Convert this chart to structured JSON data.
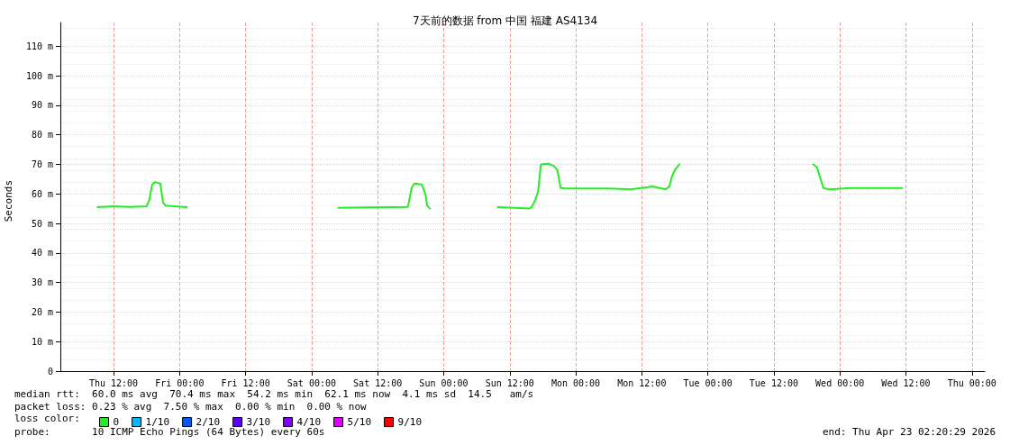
{
  "chart_data": {
    "type": "line",
    "title": "7天前的数据 from 中国 福建 AS4134",
    "ylabel": "Seconds",
    "legend_title": "loss color:",
    "legend": "bottom left",
    "grid": true,
    "marker": "none",
    "line_style": "solid",
    "xlim": [
      "2026-04-16T02:20",
      "2026-04-23T02:20"
    ],
    "xticks": [
      {
        "value": "2026-04-16T12:00",
        "label": "Thu 12:00"
      },
      {
        "value": "2026-04-17T00:00",
        "label": "Fri 00:00"
      },
      {
        "value": "2026-04-17T12:00",
        "label": "Fri 12:00"
      },
      {
        "value": "2026-04-18T00:00",
        "label": "Sat 00:00"
      },
      {
        "value": "2026-04-18T12:00",
        "label": "Sat 12:00"
      },
      {
        "value": "2026-04-19T00:00",
        "label": "Sun 00:00"
      },
      {
        "value": "2026-04-19T12:00",
        "label": "Sun 12:00"
      },
      {
        "value": "2026-04-20T00:00",
        "label": "Mon 00:00"
      },
      {
        "value": "2026-04-20T12:00",
        "label": "Mon 12:00"
      },
      {
        "value": "2026-04-21T00:00",
        "label": "Tue 00:00"
      },
      {
        "value": "2026-04-21T12:00",
        "label": "Tue 12:00"
      },
      {
        "value": "2026-04-22T00:00",
        "label": "Wed 00:00"
      },
      {
        "value": "2026-04-22T12:00",
        "label": "Wed 12:00"
      },
      {
        "value": "2026-04-23T00:00",
        "label": "Thu 00:00"
      }
    ],
    "ylim": [
      0,
      118
    ],
    "yticks": [
      0,
      {
        "value": 10,
        "label": "10 m"
      },
      {
        "value": 20,
        "label": "20 m"
      },
      {
        "value": 30,
        "label": "30 m"
      },
      {
        "value": 40,
        "label": "40 m"
      },
      {
        "value": 50,
        "label": "50 m"
      },
      {
        "value": 60,
        "label": "60 m"
      },
      {
        "value": 70,
        "label": "70 m"
      },
      {
        "value": 80,
        "label": "80 m"
      },
      {
        "value": 90,
        "label": "90 m"
      },
      {
        "value": 100,
        "label": "100 m"
      },
      {
        "value": 110,
        "label": "110 m"
      }
    ],
    "series": [
      {
        "name": "0",
        "color": "#22ee22",
        "x": [
          "2026-04-16T09:05",
          "2026-04-16T12:00",
          "2026-04-16T15:00",
          "2026-04-16T18:00",
          "2026-04-16T18:30",
          "2026-04-16T19:00",
          "2026-04-16T19:30",
          "2026-04-16T20:30",
          "2026-04-16T21:00",
          "2026-04-16T21:30",
          "2026-04-16T23:00",
          "2026-04-17T01:20",
          "2026-04-17T12:00",
          "2026-04-18T04:50",
          "2026-04-18T10:00",
          "2026-04-18T15:00",
          "2026-04-18T17:30",
          "2026-04-18T18:10",
          "2026-04-18T18:40",
          "2026-04-18T20:00",
          "2026-04-18T20:40",
          "2026-04-18T21:00",
          "2026-04-18T21:30",
          "2026-04-19T03:00",
          "2026-04-19T09:50",
          "2026-04-19T13:00",
          "2026-04-19T15:30",
          "2026-04-19T16:00",
          "2026-04-19T16:40",
          "2026-04-19T17:10",
          "2026-04-19T17:40",
          "2026-04-19T19:00",
          "2026-04-19T20:00",
          "2026-04-19T20:40",
          "2026-04-19T21:15",
          "2026-04-19T22:00",
          "2026-04-20T02:00",
          "2026-04-20T06:00",
          "2026-04-20T10:00",
          "2026-04-20T14:00",
          "2026-04-20T16:20",
          "2026-04-20T17:00",
          "2026-04-20T17:30",
          "2026-04-20T18:00",
          "2026-04-20T18:50",
          "2026-04-21T03:00",
          "2026-04-21T19:10",
          "2026-04-21T19:50",
          "2026-04-21T20:30",
          "2026-04-21T21:00",
          "2026-04-21T22:00",
          "2026-04-22T02:00",
          "2026-04-22T06:00",
          "2026-04-22T11:20"
        ],
        "values": [
          55.5,
          55.8,
          55.6,
          55.8,
          58,
          63,
          64,
          63.5,
          57,
          56,
          55.8,
          55.5,
          null,
          55.3,
          55.4,
          55.5,
          55.6,
          62,
          63.5,
          63.2,
          60,
          56,
          55,
          null,
          55.5,
          55.3,
          55,
          55.5,
          58,
          61,
          70,
          70.2,
          69.5,
          68,
          62,
          61.8,
          61.8,
          61.8,
          61.5,
          62.5,
          61.5,
          62.5,
          66,
          68,
          70,
          null,
          70,
          69,
          65,
          62,
          61.5,
          62,
          62,
          62
        ]
      },
      {
        "name": "1/10",
        "color": "#00b8ff"
      },
      {
        "name": "2/10",
        "color": "#0059ff"
      },
      {
        "name": "3/10",
        "color": "#5e00ff"
      },
      {
        "name": "4/10",
        "color": "#7e00ff"
      },
      {
        "name": "5/10",
        "color": "#dd00ff"
      },
      {
        "name": "9/10",
        "color": "#ff0000"
      }
    ],
    "annotations": [
      "median rtt:  60.0 ms avg  70.4 ms max  54.2 ms min  62.1 ms now  4.1 ms sd  14.5   am/s",
      "packet loss: 0.23 % avg  7.50 % max  0.00 % min  0.00 % now",
      "probe:       10 ICMP Echo Pings (64 Bytes) every 60s",
      "end: Thu Apr 23 02:20:29 2026"
    ]
  }
}
